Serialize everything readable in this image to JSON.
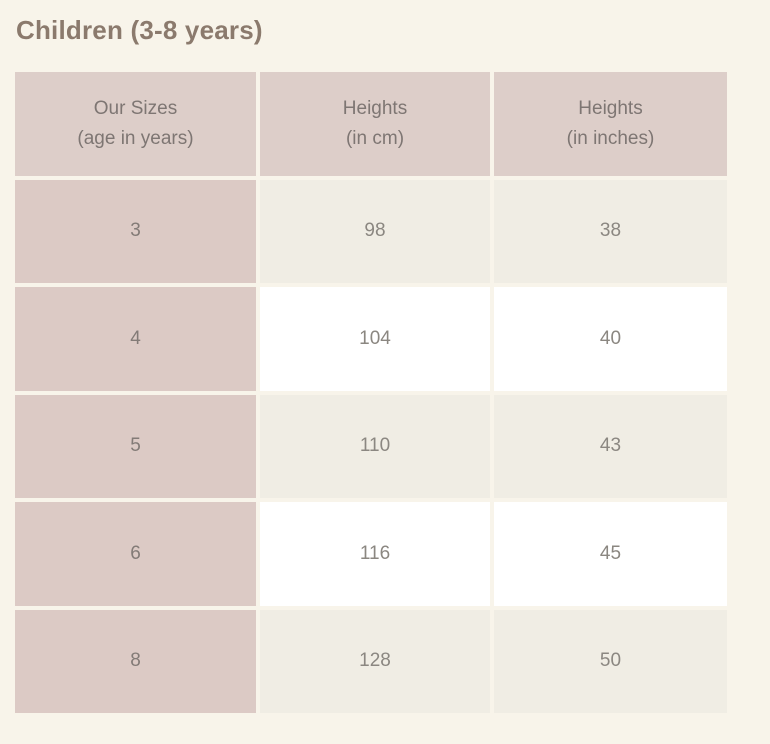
{
  "page": {
    "background": "#f8f4ea"
  },
  "title": "Children (3-8 years)",
  "table": {
    "headers": [
      {
        "line1": "Our Sizes",
        "line2": "(age in years)"
      },
      {
        "line1": "Heights",
        "line2": "(in cm)"
      },
      {
        "line1": "Heights",
        "line2": "(in inches)"
      }
    ],
    "rows": [
      {
        "size": "3",
        "height_cm": "98",
        "height_in": "38"
      },
      {
        "size": "4",
        "height_cm": "104",
        "height_in": "40"
      },
      {
        "size": "5",
        "height_cm": "110",
        "height_in": "43"
      },
      {
        "size": "6",
        "height_cm": "116",
        "height_in": "45"
      },
      {
        "size": "8",
        "height_cm": "128",
        "height_in": "50"
      }
    ],
    "colors": {
      "header_bg": "#ddcec9",
      "size_column_bg": "#dccac5",
      "row_odd_bg": "#f0ede4",
      "row_even_bg": "#ffffff",
      "header_text": "#7e7673",
      "cell_text": "#8b8781",
      "title_text": "#8b7a6d"
    }
  }
}
